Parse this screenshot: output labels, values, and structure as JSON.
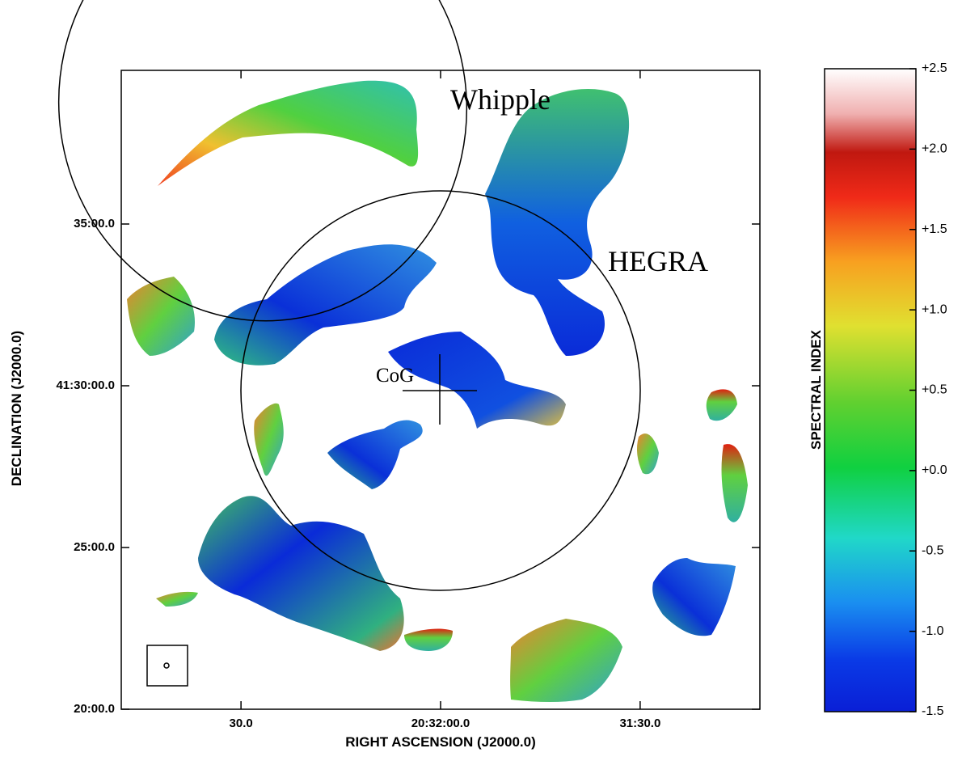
{
  "chart_data": {
    "type": "image",
    "x_label": "RIGHT ASCENSION (J2000.0)",
    "y_label": "DECLINATION (J2000.0)",
    "xlim": [
      73968,
      73872
    ],
    "xticks": [
      {
        "value": 73950,
        "label": "30.0"
      },
      {
        "value": 73920,
        "label": "20:32:00.0"
      },
      {
        "value": 73890,
        "label": "31:30.0"
      }
    ],
    "ylim": [
      2480,
      2499.75
    ],
    "yticks": [
      {
        "value": 2480,
        "label": "20:00.0"
      },
      {
        "value": 2485,
        "label": "25:00.0"
      },
      {
        "value": 2490,
        "label": "41:30:00.0"
      },
      {
        "value": 2495,
        "label": "35:00.0"
      }
    ],
    "colorbar": {
      "label": "SPECTRAL INDEX",
      "lim": [
        -1.5,
        2.5
      ],
      "ticks": [
        -1.5,
        {
          "value": -1,
          "label": "-1.0"
        },
        -0.5,
        {
          "value": 0,
          "label": "+0.0"
        },
        {
          "value": 0.5,
          "label": "+0.5"
        },
        {
          "value": 1,
          "label": "+1.0"
        },
        {
          "value": 1.5,
          "label": "+1.5"
        },
        {
          "value": 2,
          "label": "+2.0"
        },
        {
          "value": 2.5,
          "label": "+2.5"
        }
      ]
    },
    "annotations": [
      "Whipple",
      "HEGRA",
      "CoG"
    ]
  }
}
